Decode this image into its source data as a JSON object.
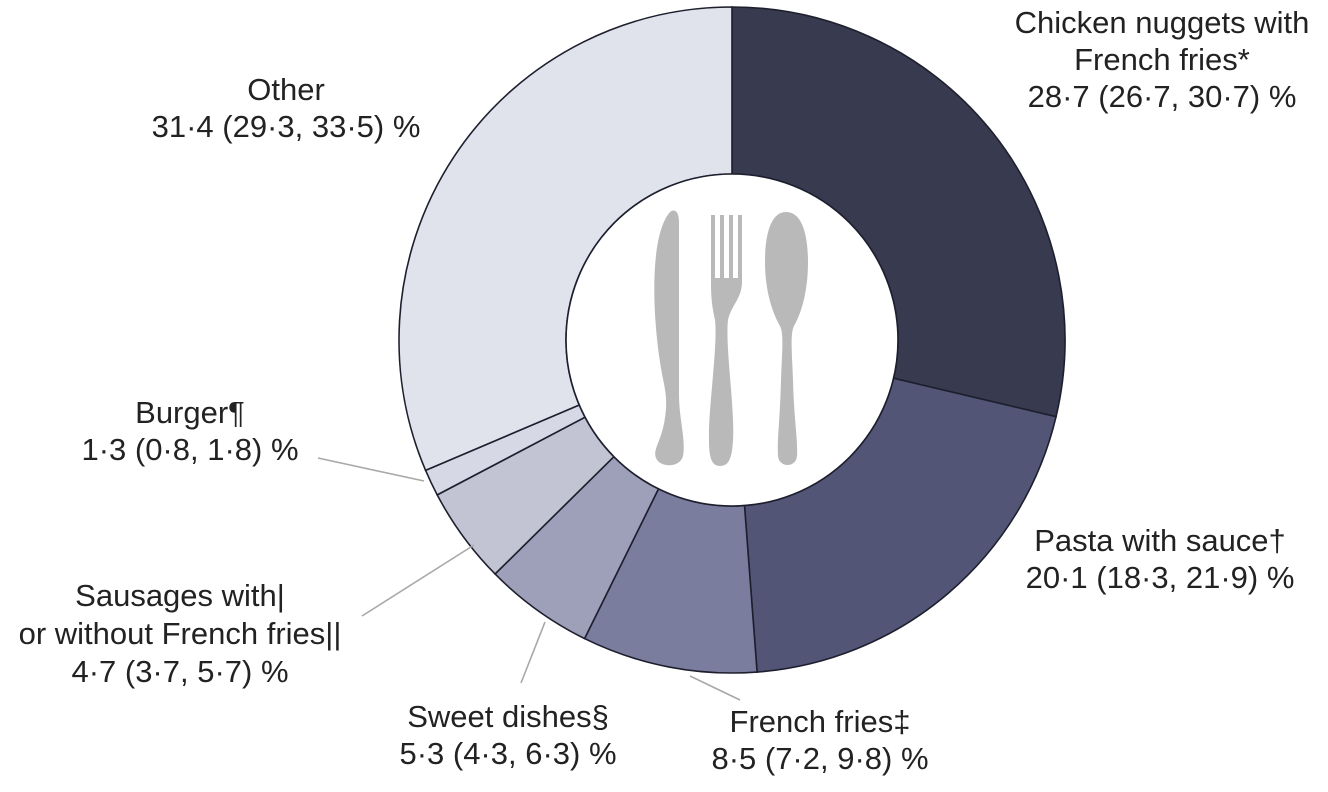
{
  "chart_data": {
    "type": "pie",
    "title": "",
    "start_angle_deg": 0,
    "direction": "clockwise",
    "center_icon": "cutlery-icon",
    "slices": [
      {
        "name": "Chicken nuggets with French fries*",
        "value": 28.7,
        "label_lines": [
          "Chicken nuggets with",
          "French fries*",
          "28·7 (26·7, 30·7) %"
        ],
        "color": "#383a4f"
      },
      {
        "name": "Pasta with sauce†",
        "value": 20.1,
        "label_lines": [
          "Pasta with sauce†",
          "20·1 (18·3, 21·9) %"
        ],
        "color": "#535576"
      },
      {
        "name": "French fries‡",
        "value": 8.5,
        "label_lines": [
          "French fries‡",
          "8·5 (7·2, 9·8) %"
        ],
        "color": "#7b7d9f"
      },
      {
        "name": "Sweet dishes§",
        "value": 5.3,
        "label_lines": [
          "Sweet dishes§",
          "5·3 (4·3, 6·3) %"
        ],
        "color": "#9da0b8"
      },
      {
        "name": "Sausages with| or without French fries||",
        "value": 4.7,
        "label_lines": [
          "Sausages with|",
          "or without French fries||",
          "4·7 (3·7, 5·7) %"
        ],
        "color": "#c2c4d4"
      },
      {
        "name": "Burger¶",
        "value": 1.3,
        "label_lines": [
          "Burger¶",
          "1·3 (0·8, 1·8) %"
        ],
        "color": "#d6d9e5"
      },
      {
        "name": "Other",
        "value": 31.4,
        "label_lines": [
          "Other",
          "31·4 (29·3, 33·5) %"
        ],
        "color": "#e0e3ec"
      }
    ]
  }
}
